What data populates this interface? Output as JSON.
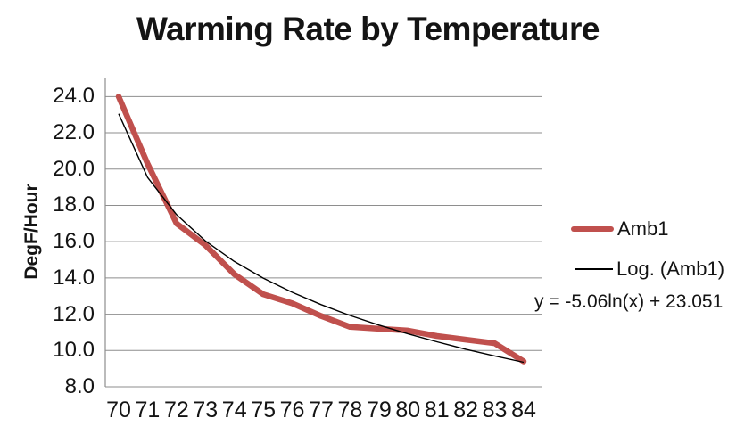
{
  "chart_data": {
    "type": "line",
    "title": "Warming Rate by Temperature",
    "xlabel": "",
    "ylabel": "DegF/Hour",
    "categories": [
      70,
      71,
      72,
      73,
      74,
      75,
      76,
      77,
      78,
      79,
      80,
      81,
      82,
      83,
      84
    ],
    "yticks": [
      "8.0",
      "10.0",
      "12.0",
      "14.0",
      "16.0",
      "18.0",
      "20.0",
      "22.0",
      "24.0"
    ],
    "ylim": [
      8,
      25
    ],
    "grid": true,
    "legend_position": "right",
    "series": [
      {
        "name": "Amb1",
        "style": "thick",
        "color": "#C0504D",
        "values": [
          24.0,
          20.3,
          17.0,
          15.8,
          14.2,
          13.1,
          12.6,
          11.9,
          11.3,
          11.2,
          11.1,
          10.8,
          10.6,
          10.4,
          9.4
        ]
      },
      {
        "name": "Log. (Amb1)",
        "style": "thin",
        "color": "#000000",
        "values": [
          23.05,
          19.54,
          17.49,
          16.04,
          14.91,
          13.99,
          13.21,
          12.53,
          11.93,
          11.4,
          10.92,
          10.48,
          10.07,
          9.7,
          9.35
        ]
      }
    ],
    "annotation": "y = -5.06ln(x) + 23.051"
  },
  "colors": {
    "series_red": "#C0504D",
    "trendline": "#000000",
    "gridline": "#8E8E8E",
    "axis_line": "#8E8E8E",
    "text": "#141414",
    "background": "#FFFFFF"
  }
}
